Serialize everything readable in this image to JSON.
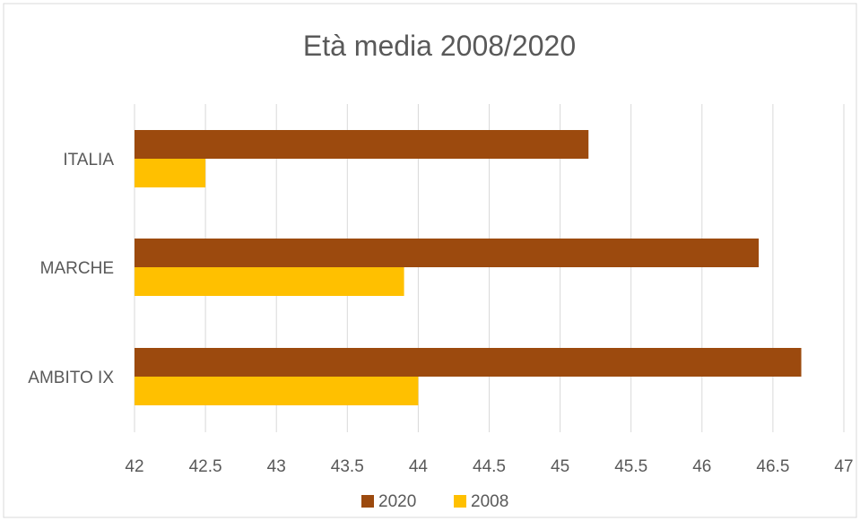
{
  "chart_data": {
    "type": "bar",
    "orientation": "horizontal",
    "title": "Età media 2008/2020",
    "categories": [
      "ITALIA",
      "MARCHE",
      "AMBITO IX"
    ],
    "series": [
      {
        "name": "2020",
        "values": [
          45.2,
          46.4,
          46.7
        ]
      },
      {
        "name": "2008",
        "values": [
          42.5,
          43.9,
          44.0
        ]
      }
    ],
    "xlim": [
      42,
      47
    ],
    "xticks": [
      42,
      42.5,
      43,
      43.5,
      44,
      44.5,
      45,
      45.5,
      46,
      46.5,
      47
    ],
    "xtick_labels": [
      "42",
      "42.5",
      "43",
      "43.5",
      "44",
      "44.5",
      "45",
      "45.5",
      "46",
      "46.5",
      "47"
    ],
    "grid": true,
    "legend_position": "bottom",
    "colors": {
      "2020": "#9C4A0E",
      "2008": "#FFC000",
      "grid": "#D9D9D9",
      "text": "#595959",
      "border": "#D9D9D9"
    }
  }
}
